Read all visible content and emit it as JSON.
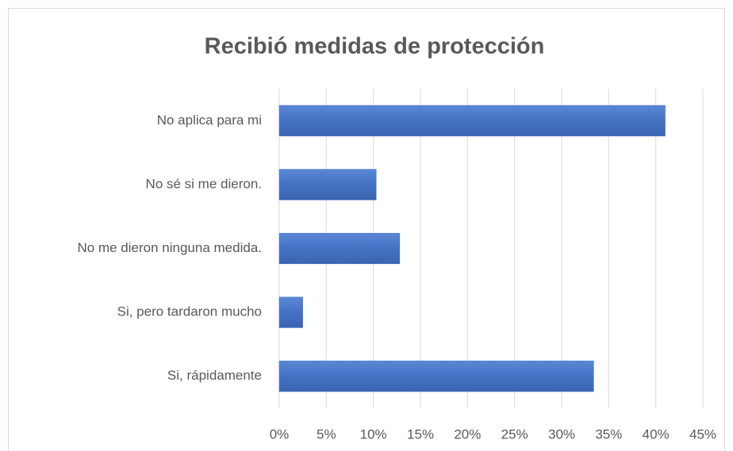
{
  "chart_data": {
    "type": "bar",
    "orientation": "horizontal",
    "title": "Recibió medidas de protección",
    "categories": [
      "No aplica para mi",
      "No sé si me dieron.",
      "No me dieron ninguna medida.",
      "Si, pero tardaron mucho",
      "Si, rápidamente"
    ],
    "values": [
      41,
      10.3,
      12.8,
      2.5,
      33.4
    ],
    "color": "#4472c4",
    "xlim": [
      0,
      45
    ],
    "xticks": [
      {
        "value": 0,
        "label": "0%"
      },
      {
        "value": 5,
        "label": "5%"
      },
      {
        "value": 10,
        "label": "10%"
      },
      {
        "value": 15,
        "label": "15%"
      },
      {
        "value": 20,
        "label": "20%"
      },
      {
        "value": 25,
        "label": "25%"
      },
      {
        "value": 30,
        "label": "30%"
      },
      {
        "value": 35,
        "label": "35%"
      },
      {
        "value": 40,
        "label": "40%"
      },
      {
        "value": 45,
        "label": "45%"
      }
    ],
    "grid": true
  }
}
